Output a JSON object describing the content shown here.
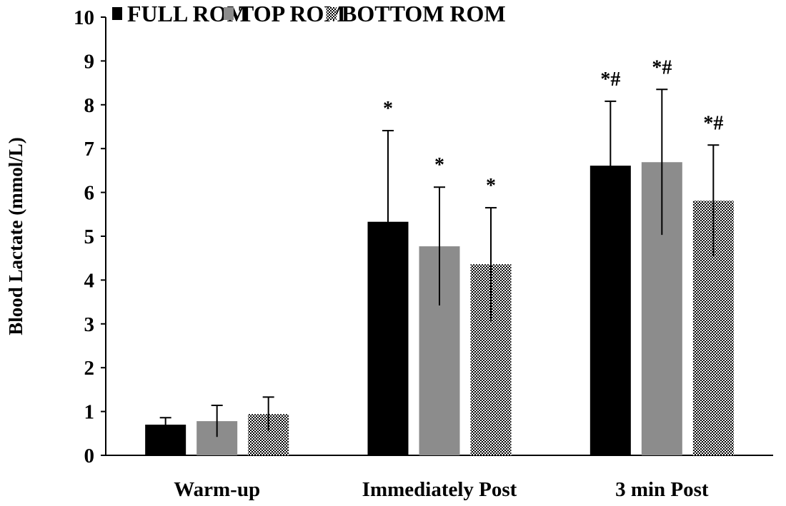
{
  "chart_data": {
    "type": "bar",
    "title": "",
    "xlabel": "",
    "ylabel": "Blood Lactate (mmol/L)",
    "ylim": [
      0,
      10
    ],
    "yticks": [
      "0",
      "1",
      "2",
      "3",
      "4",
      "5",
      "6",
      "7",
      "8",
      "9",
      "10"
    ],
    "categories": [
      "Warm-up",
      "Immediately Post",
      "3 min Post"
    ],
    "legend_position": "top",
    "series": [
      {
        "name": "FULL ROM",
        "color": "#000000",
        "pattern": "solid",
        "values": [
          0.7,
          5.33,
          6.61
        ],
        "error_upper": [
          0.86,
          7.41,
          8.08
        ],
        "annotations": [
          "",
          "*",
          "*#"
        ]
      },
      {
        "name": "TOP ROM",
        "color": "#8c8c8c",
        "pattern": "solid",
        "values": [
          0.78,
          4.77,
          6.69
        ],
        "error_upper": [
          1.14,
          6.12,
          8.35
        ],
        "annotations": [
          "",
          "*",
          "*#"
        ]
      },
      {
        "name": "BOTTOM ROM",
        "color": "#000000",
        "pattern": "checker",
        "values": [
          0.94,
          4.36,
          5.81
        ],
        "error_upper": [
          1.33,
          5.65,
          7.08
        ],
        "annotations": [
          "",
          "*",
          "*#"
        ]
      }
    ]
  }
}
